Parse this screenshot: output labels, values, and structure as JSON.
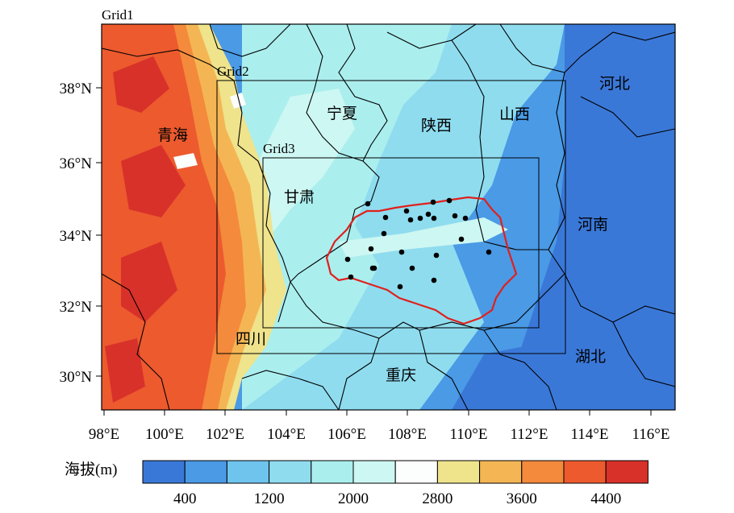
{
  "grids": [
    {
      "label": "Grid1"
    },
    {
      "label": "Grid2"
    },
    {
      "label": "Grid3"
    }
  ],
  "regions": [
    {
      "id": "qinghai",
      "name": "青海"
    },
    {
      "id": "ningxia",
      "name": "宁夏"
    },
    {
      "id": "shaanxi",
      "name": "陕西"
    },
    {
      "id": "shanxi",
      "name": "山西"
    },
    {
      "id": "hebei",
      "name": "河北"
    },
    {
      "id": "gansu",
      "name": "甘肃"
    },
    {
      "id": "henan",
      "name": "河南"
    },
    {
      "id": "sichuan",
      "name": "四川"
    },
    {
      "id": "hubei",
      "name": "湖北"
    },
    {
      "id": "chongqing",
      "name": "重庆"
    }
  ],
  "axes": {
    "x_ticks": [
      "98°E",
      "100°E",
      "102°E",
      "104°E",
      "106°E",
      "108°E",
      "110°E",
      "112°E",
      "114°E",
      "116°E"
    ],
    "y_ticks": [
      "38°N",
      "36°N",
      "34°N",
      "32°N",
      "30°N"
    ]
  },
  "colorbar": {
    "title": "海拔(m)",
    "colors": [
      "#3a78d8",
      "#4a9ae6",
      "#6fc4ee",
      "#8fdcef",
      "#abeeee",
      "#cdf7f2",
      "#fcfdfd",
      "#efe38c",
      "#f4b654",
      "#f48a3c",
      "#ec5a2e",
      "#d8312a"
    ],
    "tick_labels": [
      "400",
      "1200",
      "2000",
      "2800",
      "3600",
      "4400"
    ]
  },
  "station_count": 24,
  "colors": {
    "boundary_red": "#e0201c",
    "station_dot": "#000000",
    "frame": "#000000"
  }
}
